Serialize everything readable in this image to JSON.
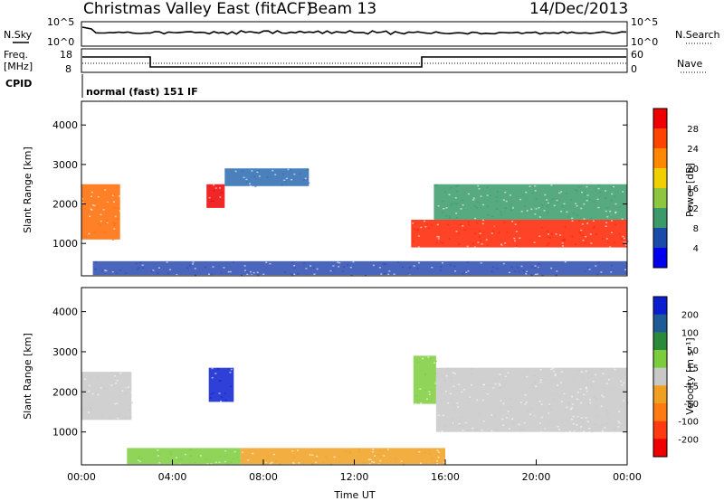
{
  "header": {
    "station": "Christmas Valley East (fitACF)",
    "beam": "Beam 13",
    "date": "14/Dec/2013"
  },
  "nsky_panel": {
    "left_label": "N.Sky",
    "right_label": "N.Search",
    "left_ticks": [
      "10^5",
      "10^0"
    ],
    "right_ticks": [
      "10^5",
      "10^0"
    ]
  },
  "freq_panel": {
    "left_label_line1": "Freq.",
    "left_label_line2": "[MHz]",
    "right_label": "Nave",
    "left_ticks": [
      "18",
      "8"
    ],
    "right_ticks": [
      "60",
      "0"
    ]
  },
  "cpid": {
    "label": "CPID",
    "value": "normal (fast) 151 IF"
  },
  "power_colorbar": {
    "label": "Power [dB]",
    "ticks": [
      "28",
      "24",
      "20",
      "16",
      "12",
      "8",
      "4"
    ],
    "colors": [
      "#ee0000",
      "#ff4400",
      "#ff8800",
      "#f0d000",
      "#8ec640",
      "#3a9a6a",
      "#1a4aaa",
      "#0000ee"
    ]
  },
  "velocity_colorbar": {
    "label": "Velocity [m s⁻¹]",
    "ticks": [
      "200",
      "100",
      "50",
      "15",
      "-15",
      "-50",
      "-100",
      "-200"
    ],
    "colors": [
      "#0a1ed0",
      "#1e5a96",
      "#2a8a3a",
      "#7ccd3c",
      "#c8c8c8",
      "#f0a020",
      "#ff7a10",
      "#ff3a10",
      "#ee0000"
    ]
  },
  "chart_data": [
    {
      "type": "heatmap",
      "name": "power",
      "xlabel": "",
      "ylabel": "Slant Range [km]",
      "xlim": [
        "00:00",
        "24:00"
      ],
      "ylim": [
        180,
        4600
      ],
      "yticks": [
        "1000",
        "2000",
        "3000",
        "4000"
      ],
      "regions": [
        {
          "t0": 0.0,
          "t1": 1.7,
          "r0": 1100,
          "r1": 2500,
          "color": "#ff6a00"
        },
        {
          "t0": 5.5,
          "t1": 6.3,
          "r0": 1900,
          "r1": 2500,
          "color": "#ee0000"
        },
        {
          "t0": 6.3,
          "t1": 10.0,
          "r0": 2450,
          "r1": 2900,
          "color": "#2a6ab0"
        },
        {
          "t0": 14.5,
          "t1": 24.0,
          "r0": 900,
          "r1": 1600,
          "color": "#ff2200"
        },
        {
          "t0": 15.5,
          "t1": 24.0,
          "r0": 1600,
          "r1": 2500,
          "color": "#3a9a6a"
        },
        {
          "t0": 0.5,
          "t1": 24.0,
          "r0": 200,
          "r1": 550,
          "color": "#2a4ab0"
        }
      ]
    },
    {
      "type": "heatmap",
      "name": "velocity",
      "xlabel": "Time UT",
      "ylabel": "Slant Range [km]",
      "xlim": [
        "00:00",
        "24:00"
      ],
      "ylim": [
        180,
        4600
      ],
      "yticks": [
        "1000",
        "2000",
        "3000",
        "4000"
      ],
      "xticks": [
        "00:00",
        "04:00",
        "08:00",
        "12:00",
        "16:00",
        "20:00",
        "00:00"
      ],
      "regions": [
        {
          "t0": 0.0,
          "t1": 2.2,
          "r0": 1300,
          "r1": 2500,
          "color": "#c8c8c8"
        },
        {
          "t0": 5.6,
          "t1": 6.7,
          "r0": 1750,
          "r1": 2600,
          "color": "#0a1ed0"
        },
        {
          "t0": 14.6,
          "t1": 15.6,
          "r0": 1700,
          "r1": 2900,
          "color": "#7ccd3c"
        },
        {
          "t0": 15.6,
          "t1": 24.0,
          "r0": 1000,
          "r1": 2600,
          "color": "#c8c8c8"
        },
        {
          "t0": 2.0,
          "t1": 7.0,
          "r0": 200,
          "r1": 600,
          "color": "#7ccd3c"
        },
        {
          "t0": 7.0,
          "t1": 16.0,
          "r0": 200,
          "r1": 600,
          "color": "#f0a020"
        }
      ]
    }
  ]
}
